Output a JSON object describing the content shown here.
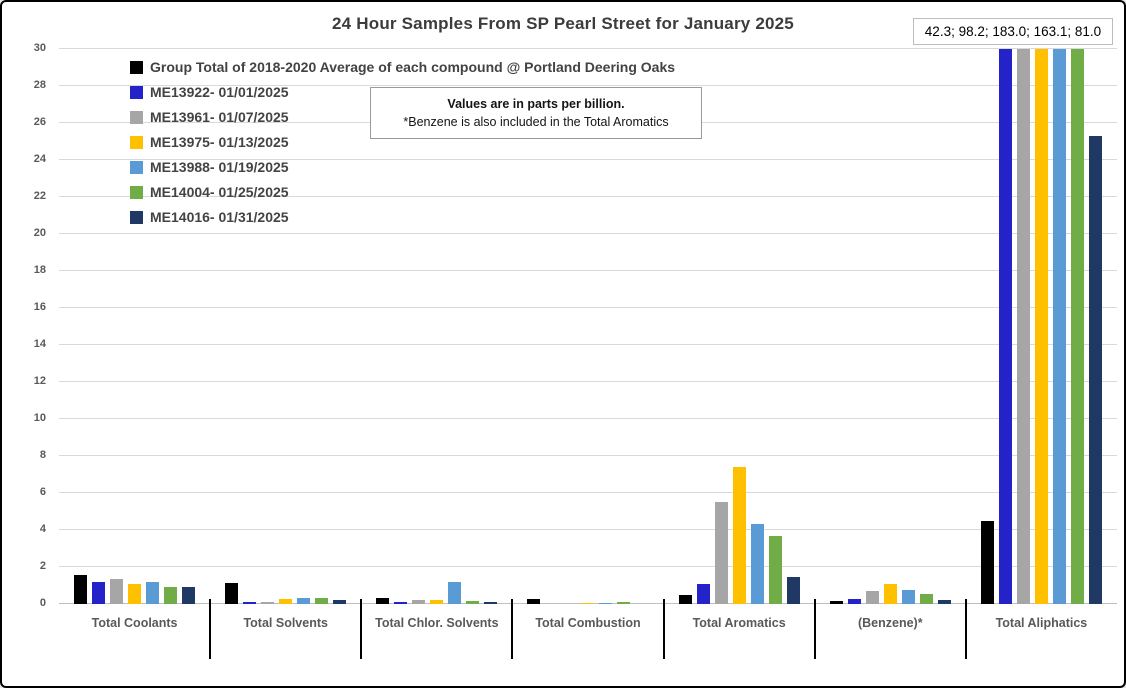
{
  "title": "24 Hour Samples From SP Pearl Street for January 2025",
  "annotations": {
    "overflow_values": "42.3; 98.2; 183.0; 163.1; 81.0",
    "note_line1": "Values are in parts per billion.",
    "note_line2": "*Benzene is also included in the Total Aromatics"
  },
  "chart_data": {
    "type": "bar",
    "title": "24 Hour Samples From SP Pearl Street for January 2025",
    "units": "parts per billion",
    "xlabel": "",
    "ylabel": "",
    "ylim": [
      0,
      30
    ],
    "ytick_step": 2,
    "grid": true,
    "legend_position": "top-left inside plot",
    "clip_max": 30,
    "overflow_note": "42.3; 98.2; 183.0; 163.1; 81.0",
    "categories": [
      "Total Coolants",
      "Total Solvents",
      "Total Chlor. Solvents",
      "Total Combustion",
      "Total Aromatics",
      "(Benzene)*",
      "Total Aliphatics"
    ],
    "series": [
      {
        "name": "Group Total of 2018-2020 Average of each compound @ Portland Deering Oaks",
        "color": "#000000",
        "values": [
          1.55,
          1.15,
          0.35,
          0.25,
          0.5,
          0.15,
          4.5
        ]
      },
      {
        "name": "ME13922- 01/01/2025",
        "color": "#2323C9",
        "values": [
          1.2,
          0.1,
          0.1,
          0,
          1.1,
          0.25,
          42.3
        ]
      },
      {
        "name": "ME13961- 01/07/2025",
        "color": "#A6A6A6",
        "values": [
          1.35,
          0.1,
          0.2,
          0,
          5.5,
          0.7,
          98.2
        ]
      },
      {
        "name": "ME13975- 01/13/2025",
        "color": "#FFC000",
        "values": [
          1.1,
          0.25,
          0.2,
          0.08,
          7.4,
          1.1,
          183.0
        ]
      },
      {
        "name": "ME13988- 01/19/2025",
        "color": "#5B9BD5",
        "values": [
          1.2,
          0.3,
          1.2,
          0.07,
          4.3,
          0.75,
          163.1
        ]
      },
      {
        "name": "ME14004- 01/25/2025",
        "color": "#70AD47",
        "values": [
          0.9,
          0.35,
          0.15,
          0.09,
          3.7,
          0.55,
          81.0
        ]
      },
      {
        "name": "ME14016- 01/31/2025",
        "color": "#1F3864",
        "values": [
          0.9,
          0.2,
          0.1,
          0,
          1.45,
          0.2,
          25.3
        ]
      }
    ]
  }
}
